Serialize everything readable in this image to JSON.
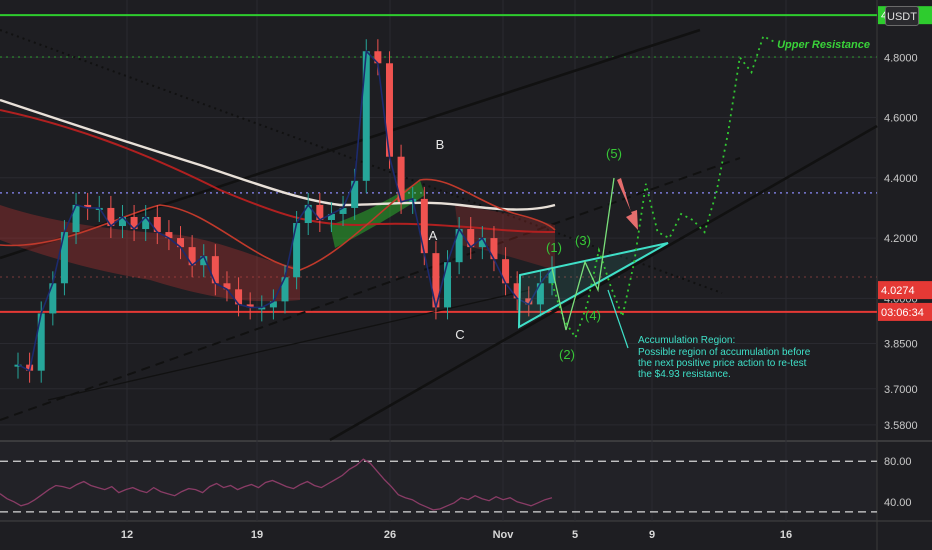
{
  "unit_button": "USDT",
  "colors": {
    "background": "#1e1e22",
    "resistance": "#2ecc2e",
    "support": "#e53935",
    "wave_green": "#37c837",
    "accumulation": "#3fe0c8",
    "rsi_line": "#8a3c66",
    "bull_candle": "#26a69a",
    "bear_candle": "#ef5350"
  },
  "chart_data": [
    {
      "type": "line",
      "title": "",
      "xlabel": "",
      "ylabel": "",
      "x_ticks": [
        "12",
        "19",
        "26",
        "Nov",
        "5",
        "9",
        "16"
      ],
      "y_ticks": [
        "4.8000",
        "4.6000",
        "4.4000",
        "4.2000",
        "4.0000",
        "3.8500",
        "3.7000",
        "3.5800"
      ],
      "ylim": [
        3.53,
        4.99
      ],
      "price_badges": [
        {
          "label": "4.9397",
          "value": 4.9397,
          "color": "#2ecc2e"
        },
        {
          "label": "4.0274",
          "value": 4.0274,
          "color": "#e53935"
        },
        {
          "label": "03:06:34",
          "value": 3.955,
          "color": "#e53935"
        }
      ],
      "levels": [
        {
          "name": "Upper Resistance",
          "value": 4.9397,
          "style": "solid",
          "color": "#2ecc2e"
        },
        {
          "name": "",
          "value": 3.955,
          "style": "solid",
          "color": "#e53935"
        },
        {
          "name": "",
          "value": 4.35,
          "style": "dotted",
          "color": "#7a7ad6"
        }
      ],
      "corrective_labels": [
        "A",
        "B",
        "C"
      ],
      "wave_labels": [
        "(1)",
        "(2)",
        "(3)",
        "(4)",
        "(5)"
      ],
      "annotations": {
        "upper_resistance": "Upper Resistance",
        "accumulation_title": "Accumulation Region:",
        "accumulation_text": [
          "Possible region of accumulation before",
          "the next positive price action to re-test",
          "the $4.93 resistance."
        ]
      },
      "price_series": [
        3.78,
        3.76,
        3.95,
        4.05,
        4.22,
        4.31,
        4.3,
        4.3,
        4.24,
        4.27,
        4.23,
        4.27,
        4.22,
        4.2,
        4.17,
        4.11,
        4.14,
        4.05,
        4.03,
        3.98,
        3.97,
        3.97,
        3.99,
        4.07,
        4.25,
        4.31,
        4.26,
        4.28,
        4.3,
        4.39,
        4.82,
        4.78,
        4.47,
        4.32,
        4.33,
        4.15,
        3.97,
        4.12,
        4.23,
        4.17,
        4.2,
        4.13,
        4.05,
        4.0,
        3.98,
        4.05,
        4.1
      ],
      "projection": [
        4.05,
        3.93,
        3.87,
        3.98,
        4.16,
        4.04,
        3.94,
        4.12,
        4.38,
        4.22,
        4.2,
        4.28,
        4.26,
        4.22,
        4.35,
        4.55,
        4.8,
        4.75,
        4.87,
        4.85
      ]
    },
    {
      "type": "line",
      "title": "",
      "y_ticks": [
        "80.00",
        "40.00"
      ],
      "ylim": [
        22,
        97
      ],
      "reference_levels": [
        80,
        30
      ],
      "values": [
        48,
        43,
        40,
        36,
        38,
        42,
        47,
        52,
        56,
        55,
        53,
        57,
        60,
        56,
        54,
        52,
        55,
        49,
        52,
        54,
        51,
        49,
        54,
        50,
        48,
        46,
        50,
        53,
        52,
        49,
        55,
        58,
        54,
        56,
        52,
        55,
        57,
        54,
        59,
        61,
        58,
        55,
        53,
        57,
        60,
        56,
        54,
        58,
        62,
        66,
        72,
        76,
        82,
        78,
        70,
        62,
        55,
        47,
        44,
        42,
        38,
        35,
        32,
        33,
        36,
        39,
        44,
        42,
        46,
        43,
        41,
        45,
        42,
        44,
        40,
        38,
        36,
        39,
        42,
        44
      ]
    }
  ]
}
